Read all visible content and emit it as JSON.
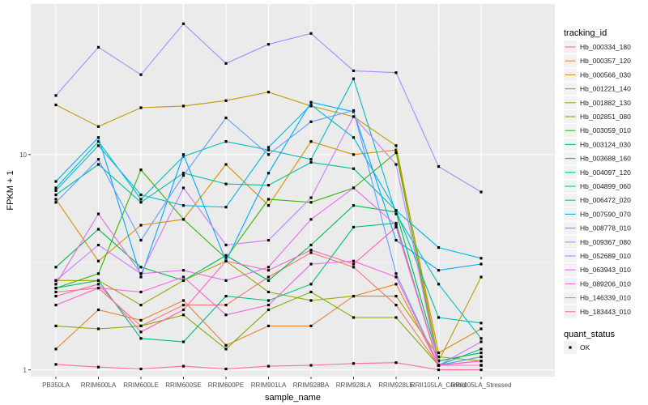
{
  "chart_data": {
    "type": "line",
    "xlabel": "sample_name",
    "ylabel": "FPKM + 1",
    "y_scale": "log10",
    "ylim": [
      0.93,
      50
    ],
    "y_ticks": [
      {
        "value": 1,
        "label": "1"
      },
      {
        "value": 10,
        "label": "10"
      }
    ],
    "categories": [
      "PB350LA",
      "RRIM600LA",
      "RRIM600LE",
      "RRIM600SE",
      "RRIM600PE",
      "RRIM901LA",
      "RRIM928BA",
      "RRIM928LA",
      "RRIM928LE",
      "RRII105LA_Control",
      "RRII105LA_Stressed"
    ],
    "grid": true,
    "legend_title": "tracking_id",
    "legend_position": "right",
    "shape_legend": {
      "title": "quant_status",
      "items": [
        "OK"
      ]
    },
    "series": [
      {
        "name": "Hb_000334_180",
        "color": "#F8766D",
        "values": [
          2.3,
          2.4,
          1.6,
          2.0,
          2.0,
          2.7,
          3.5,
          3.0,
          2.0,
          1.05,
          1.05
        ]
      },
      {
        "name": "Hb_000357_120",
        "color": "#EA8331",
        "values": [
          1.25,
          1.9,
          1.7,
          2.1,
          1.3,
          1.6,
          1.6,
          2.2,
          2.5,
          1.05,
          1.1
        ]
      },
      {
        "name": "Hb_000566_030",
        "color": "#D89000",
        "values": [
          6.2,
          3.2,
          4.7,
          5.0,
          9.0,
          5.8,
          11.5,
          10.0,
          10.5,
          1.2,
          1.55
        ]
      },
      {
        "name": "Hb_001221_140",
        "color": "#C09B00",
        "values": [
          17.0,
          13.5,
          16.5,
          16.8,
          17.8,
          19.5,
          16.8,
          15.0,
          11.0,
          1.1,
          2.7
        ]
      },
      {
        "name": "Hb_001882_130",
        "color": "#A3A500",
        "values": [
          2.6,
          2.6,
          2.0,
          2.6,
          3.2,
          2.3,
          2.1,
          2.2,
          2.2,
          1.15,
          1.1
        ]
      },
      {
        "name": "Hb_002851_080",
        "color": "#7CAE00",
        "values": [
          1.6,
          1.55,
          1.6,
          1.8,
          1.25,
          1.9,
          2.3,
          1.75,
          1.75,
          1.05,
          1.05
        ]
      },
      {
        "name": "Hb_003059_010",
        "color": "#39B600",
        "values": [
          2.4,
          2.8,
          8.5,
          5.0,
          3.3,
          6.2,
          6.0,
          7.0,
          10.2,
          1.05,
          1.15
        ]
      },
      {
        "name": "Hb_003124_030",
        "color": "#00BB4E",
        "values": [
          3.0,
          4.5,
          3.0,
          2.6,
          3.4,
          2.6,
          3.8,
          5.8,
          5.4,
          1.1,
          1.2
        ]
      },
      {
        "name": "Hb_003688_160",
        "color": "#00BF7D",
        "values": [
          2.4,
          2.6,
          1.4,
          1.35,
          2.2,
          2.1,
          2.5,
          4.6,
          4.8,
          1.05,
          1.25
        ]
      },
      {
        "name": "Hb_004097_120",
        "color": "#00C1A3",
        "values": [
          6.5,
          9.0,
          6.0,
          8.2,
          7.3,
          7.2,
          9.2,
          8.6,
          5.5,
          1.75,
          1.65
        ]
      },
      {
        "name": "Hb_004899_060",
        "color": "#00BFC4",
        "values": [
          7.0,
          11.5,
          6.2,
          9.8,
          11.5,
          10.5,
          9.5,
          22.5,
          5.3,
          2.5,
          1.4
        ]
      },
      {
        "name": "Hb_006472_020",
        "color": "#00B8E7",
        "values": [
          6.8,
          11.0,
          6.5,
          5.8,
          5.7,
          10.8,
          17.0,
          12.0,
          5.5,
          3.7,
          3.3
        ]
      },
      {
        "name": "Hb_007590_070",
        "color": "#00A9FF",
        "values": [
          7.5,
          12.0,
          2.7,
          10.0,
          3.2,
          8.2,
          17.5,
          15.8,
          4.0,
          2.9,
          3.1
        ]
      },
      {
        "name": "Hb_008778_010",
        "color": "#619CFF",
        "values": [
          6.0,
          9.5,
          4.0,
          8.0,
          14.8,
          10.0,
          14.2,
          16.0,
          2.8,
          1.05,
          1.15
        ]
      },
      {
        "name": "Hb_009367_080",
        "color": "#AE87FF",
        "values": [
          18.8,
          31.5,
          23.5,
          40.5,
          26.5,
          32.5,
          36.5,
          24.5,
          24.0,
          8.8,
          6.7
        ]
      },
      {
        "name": "Hb_052689_010",
        "color": "#C77CFF",
        "values": [
          2.6,
          3.8,
          2.8,
          7.0,
          3.8,
          4.0,
          6.3,
          15.0,
          9.0,
          1.05,
          1.35
        ]
      },
      {
        "name": "Hb_063943_010",
        "color": "#E76BF3",
        "values": [
          2.5,
          5.3,
          2.8,
          2.9,
          2.6,
          3.0,
          5.0,
          7.0,
          4.7,
          1.05,
          1.05
        ]
      },
      {
        "name": "Hb_089206_010",
        "color": "#FA62DB",
        "values": [
          2.0,
          2.4,
          2.3,
          2.7,
          1.8,
          2.0,
          3.1,
          3.2,
          2.7,
          1.05,
          1.05
        ]
      },
      {
        "name": "Hb_146339_010",
        "color": "#FF62BC",
        "values": [
          2.2,
          2.5,
          1.5,
          1.9,
          3.2,
          2.9,
          3.6,
          3.1,
          4.6,
          1.05,
          1.1
        ]
      },
      {
        "name": "Hb_183443_010",
        "color": "#FF6C91",
        "values": [
          1.06,
          1.03,
          1.01,
          1.04,
          1.01,
          1.04,
          1.05,
          1.07,
          1.08,
          1.0,
          1.0
        ]
      }
    ]
  }
}
